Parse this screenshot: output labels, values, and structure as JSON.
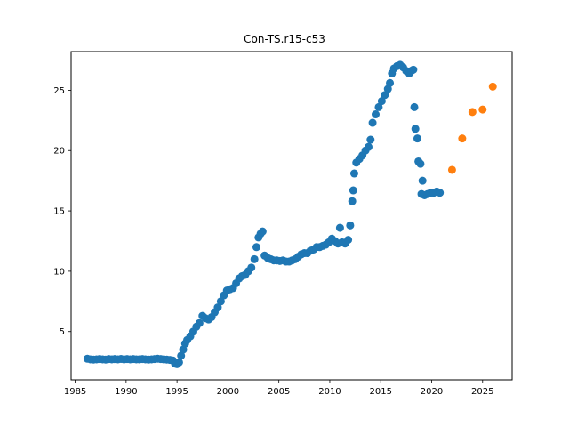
{
  "chart_data": {
    "type": "scatter",
    "title": "Con-TS.r15-c53",
    "xlabel": "",
    "ylabel": "",
    "xlim": [
      1984.6,
      2027.9
    ],
    "ylim": [
      1.0,
      28.2
    ],
    "xticks": [
      1985,
      1990,
      1995,
      2000,
      2005,
      2010,
      2015,
      2020,
      2025
    ],
    "yticks": [
      5,
      10,
      15,
      20,
      25
    ],
    "grid": false,
    "legend": "none",
    "series": [
      {
        "color": "#1f77b4",
        "points": [
          [
            1986.2,
            2.75
          ],
          [
            1986.5,
            2.7
          ],
          [
            1986.8,
            2.68
          ],
          [
            1987.1,
            2.7
          ],
          [
            1987.4,
            2.72
          ],
          [
            1987.7,
            2.7
          ],
          [
            1988.0,
            2.68
          ],
          [
            1988.3,
            2.72
          ],
          [
            1988.6,
            2.7
          ],
          [
            1988.9,
            2.72
          ],
          [
            1989.2,
            2.7
          ],
          [
            1989.5,
            2.73
          ],
          [
            1989.8,
            2.7
          ],
          [
            1990.1,
            2.72
          ],
          [
            1990.4,
            2.7
          ],
          [
            1990.7,
            2.72
          ],
          [
            1991.0,
            2.7
          ],
          [
            1991.3,
            2.7
          ],
          [
            1991.6,
            2.72
          ],
          [
            1991.9,
            2.7
          ],
          [
            1992.2,
            2.68
          ],
          [
            1992.5,
            2.7
          ],
          [
            1992.8,
            2.72
          ],
          [
            1993.1,
            2.75
          ],
          [
            1993.4,
            2.72
          ],
          [
            1993.7,
            2.7
          ],
          [
            1994.0,
            2.68
          ],
          [
            1994.3,
            2.65
          ],
          [
            1994.6,
            2.6
          ],
          [
            1994.8,
            2.35
          ],
          [
            1995.0,
            2.3
          ],
          [
            1995.2,
            2.45
          ],
          [
            1995.4,
            3.0
          ],
          [
            1995.6,
            3.5
          ],
          [
            1995.8,
            4.0
          ],
          [
            1996.0,
            4.3
          ],
          [
            1996.3,
            4.6
          ],
          [
            1996.6,
            5.0
          ],
          [
            1996.9,
            5.4
          ],
          [
            1997.2,
            5.7
          ],
          [
            1997.5,
            6.3
          ],
          [
            1997.8,
            6.1
          ],
          [
            1998.1,
            6.0
          ],
          [
            1998.4,
            6.2
          ],
          [
            1998.7,
            6.6
          ],
          [
            1999.0,
            7.0
          ],
          [
            1999.3,
            7.5
          ],
          [
            1999.6,
            8.0
          ],
          [
            1999.9,
            8.4
          ],
          [
            2000.2,
            8.5
          ],
          [
            2000.5,
            8.6
          ],
          [
            2000.8,
            9.0
          ],
          [
            2001.1,
            9.4
          ],
          [
            2001.4,
            9.6
          ],
          [
            2001.7,
            9.7
          ],
          [
            2002.0,
            10.0
          ],
          [
            2002.3,
            10.3
          ],
          [
            2002.6,
            11.0
          ],
          [
            2002.8,
            12.0
          ],
          [
            2003.0,
            12.8
          ],
          [
            2003.2,
            13.1
          ],
          [
            2003.4,
            13.3
          ],
          [
            2003.6,
            11.3
          ],
          [
            2003.9,
            11.1
          ],
          [
            2004.2,
            11.0
          ],
          [
            2004.5,
            10.9
          ],
          [
            2004.8,
            10.9
          ],
          [
            2005.1,
            10.85
          ],
          [
            2005.4,
            10.9
          ],
          [
            2005.7,
            10.8
          ],
          [
            2006.0,
            10.8
          ],
          [
            2006.3,
            10.9
          ],
          [
            2006.6,
            11.0
          ],
          [
            2006.9,
            11.2
          ],
          [
            2007.2,
            11.4
          ],
          [
            2007.5,
            11.5
          ],
          [
            2007.8,
            11.5
          ],
          [
            2008.1,
            11.7
          ],
          [
            2008.4,
            11.8
          ],
          [
            2008.7,
            12.0
          ],
          [
            2009.0,
            12.0
          ],
          [
            2009.3,
            12.1
          ],
          [
            2009.6,
            12.2
          ],
          [
            2009.9,
            12.4
          ],
          [
            2010.2,
            12.7
          ],
          [
            2010.5,
            12.5
          ],
          [
            2010.8,
            12.3
          ],
          [
            2011.0,
            13.6
          ],
          [
            2011.2,
            12.4
          ],
          [
            2011.5,
            12.3
          ],
          [
            2011.8,
            12.6
          ],
          [
            2012.0,
            13.8
          ],
          [
            2012.2,
            15.8
          ],
          [
            2012.3,
            16.7
          ],
          [
            2012.4,
            18.1
          ],
          [
            2012.6,
            19.0
          ],
          [
            2012.9,
            19.3
          ],
          [
            2013.2,
            19.6
          ],
          [
            2013.5,
            20.0
          ],
          [
            2013.8,
            20.3
          ],
          [
            2014.0,
            20.9
          ],
          [
            2014.2,
            22.3
          ],
          [
            2014.5,
            23.0
          ],
          [
            2014.8,
            23.6
          ],
          [
            2015.1,
            24.1
          ],
          [
            2015.4,
            24.6
          ],
          [
            2015.7,
            25.1
          ],
          [
            2015.9,
            25.6
          ],
          [
            2016.1,
            26.4
          ],
          [
            2016.3,
            26.8
          ],
          [
            2016.6,
            27.0
          ],
          [
            2016.9,
            27.1
          ],
          [
            2017.2,
            26.9
          ],
          [
            2017.5,
            26.6
          ],
          [
            2017.8,
            26.4
          ],
          [
            2018.0,
            26.6
          ],
          [
            2018.2,
            26.7
          ],
          [
            2018.3,
            23.6
          ],
          [
            2018.4,
            21.8
          ],
          [
            2018.6,
            21.0
          ],
          [
            2018.7,
            19.1
          ],
          [
            2018.9,
            18.9
          ],
          [
            2019.1,
            17.5
          ],
          [
            2019.0,
            16.4
          ],
          [
            2019.3,
            16.3
          ],
          [
            2019.6,
            16.4
          ],
          [
            2019.9,
            16.5
          ],
          [
            2020.2,
            16.5
          ],
          [
            2020.5,
            16.6
          ],
          [
            2020.8,
            16.5
          ]
        ]
      },
      {
        "color": "#ff7f0e",
        "points": [
          [
            2022.0,
            18.4
          ],
          [
            2023.0,
            21.0
          ],
          [
            2024.0,
            23.2
          ],
          [
            2025.0,
            23.4
          ],
          [
            2026.0,
            25.3
          ]
        ]
      }
    ]
  }
}
